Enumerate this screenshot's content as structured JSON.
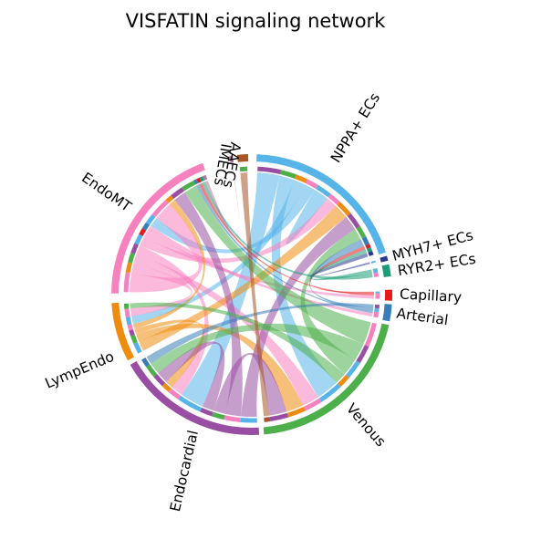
{
  "title": "VISFATIN signaling network",
  "groups": [
    {
      "id": "aaecs",
      "label": "AAECs",
      "color": "#b279a2"
    },
    {
      "id": "imecs",
      "label": "IMECs",
      "color": "#a65628"
    },
    {
      "id": "nppa",
      "label": "NPPA+ ECs",
      "color": "#56b4e9"
    },
    {
      "id": "myh7",
      "label": "MYH7+ ECs",
      "color": "#2b3990"
    },
    {
      "id": "ryr2",
      "label": "RYR2+ ECs",
      "color": "#1b9e77"
    },
    {
      "id": "capillary",
      "label": "Capillary",
      "color": "#e41a1c"
    },
    {
      "id": "arterial",
      "label": "Arterial",
      "color": "#377eb8"
    },
    {
      "id": "venous",
      "label": "Venous",
      "color": "#4daf4a"
    },
    {
      "id": "endocardial",
      "label": "Endocardial",
      "color": "#984ea3"
    },
    {
      "id": "lympendo",
      "label": "LympEndo",
      "color": "#ee8c0f"
    },
    {
      "id": "endomt",
      "label": "EndoMT",
      "color": "#f781bf"
    }
  ],
  "links": [
    {
      "from": "nppa",
      "to": "endocardial",
      "weight": 6
    },
    {
      "from": "nppa",
      "to": "venous",
      "weight": 4
    },
    {
      "from": "nppa",
      "to": "lympendo",
      "weight": 3
    },
    {
      "from": "nppa",
      "to": "endomt",
      "weight": 3
    },
    {
      "from": "nppa",
      "to": "nppa",
      "weight": 2
    },
    {
      "from": "endomt",
      "to": "endomt",
      "weight": 6
    },
    {
      "from": "endomt",
      "to": "lympendo",
      "weight": 3
    },
    {
      "from": "endomt",
      "to": "venous",
      "weight": 3
    },
    {
      "from": "endomt",
      "to": "endocardial",
      "weight": 3
    },
    {
      "from": "endomt",
      "to": "nppa",
      "weight": 3
    },
    {
      "from": "endomt",
      "to": "capillary",
      "weight": 2
    },
    {
      "from": "endomt",
      "to": "arterial",
      "weight": 2
    },
    {
      "from": "lympendo",
      "to": "nppa",
      "weight": 4
    },
    {
      "from": "lympendo",
      "to": "venous",
      "weight": 3
    },
    {
      "from": "lympendo",
      "to": "endocardial",
      "weight": 2
    },
    {
      "from": "lympendo",
      "to": "endomt",
      "weight": 2
    },
    {
      "from": "endocardial",
      "to": "nppa",
      "weight": 4
    },
    {
      "from": "endocardial",
      "to": "endomt",
      "weight": 4
    },
    {
      "from": "endocardial",
      "to": "venous",
      "weight": 3
    },
    {
      "from": "endocardial",
      "to": "endocardial",
      "weight": 3
    },
    {
      "from": "venous",
      "to": "endomt",
      "weight": 4
    },
    {
      "from": "venous",
      "to": "endocardial",
      "weight": 3
    },
    {
      "from": "venous",
      "to": "nppa",
      "weight": 3
    },
    {
      "from": "venous",
      "to": "lympendo",
      "weight": 2
    },
    {
      "from": "arterial",
      "to": "endocardial",
      "weight": 2
    },
    {
      "from": "arterial",
      "to": "nppa",
      "weight": 2
    },
    {
      "from": "arterial",
      "to": "endomt",
      "weight": 1
    },
    {
      "from": "capillary",
      "to": "nppa",
      "weight": 1
    },
    {
      "from": "capillary",
      "to": "endomt",
      "weight": 1
    },
    {
      "from": "ryr2",
      "to": "nppa",
      "weight": 1
    },
    {
      "from": "ryr2",
      "to": "endomt",
      "weight": 1
    },
    {
      "from": "myh7",
      "to": "nppa",
      "weight": 1
    },
    {
      "from": "aaecs",
      "to": "endomt",
      "weight": 1
    },
    {
      "from": "imecs",
      "to": "venous",
      "weight": 1
    }
  ]
}
